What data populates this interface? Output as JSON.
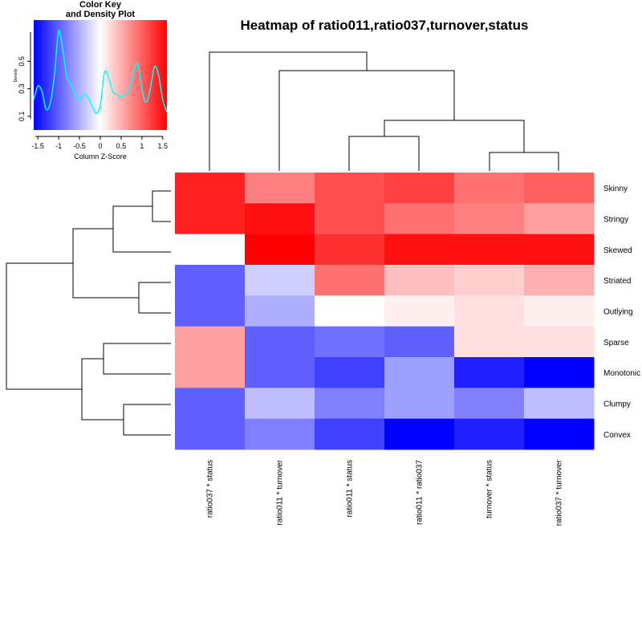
{
  "chart_data": {
    "type": "heatmap",
    "title": "Heatmap of ratio011,ratio037,turnover,status",
    "columns": [
      "ratio037 * status",
      "ratio011 * turnover",
      "ratio011 * status",
      "ratio011 * ratio037",
      "turnover * status",
      "ratio037 * turnover"
    ],
    "rows": [
      "Skinny",
      "Stringy",
      "Skewed",
      "Striated",
      "Outlying",
      "Sparse",
      "Monotonic",
      "Clumpy",
      "Convex"
    ],
    "zscores": [
      [
        1.4,
        0.8,
        1.1,
        1.2,
        0.9,
        1.0
      ],
      [
        1.4,
        1.5,
        1.1,
        0.9,
        0.8,
        0.6
      ],
      [
        0.0,
        1.6,
        1.3,
        1.5,
        1.5,
        1.5
      ],
      [
        -1.0,
        -0.3,
        0.9,
        0.4,
        0.3,
        0.5
      ],
      [
        -1.0,
        -0.5,
        0.0,
        0.1,
        0.2,
        0.1
      ],
      [
        0.6,
        -1.0,
        -0.9,
        -1.0,
        0.2,
        0.2
      ],
      [
        0.6,
        -1.0,
        -1.2,
        -0.6,
        -1.4,
        -1.6
      ],
      [
        -1.0,
        -0.4,
        -0.8,
        -0.6,
        -0.8,
        -0.4
      ],
      [
        -1.0,
        -0.8,
        -1.2,
        -1.6,
        -1.4,
        -1.6
      ]
    ],
    "color_scale": {
      "low": "#0000ff",
      "mid": "#ffffff",
      "high": "#ff0000",
      "min": -1.6,
      "max": 1.6
    },
    "column_dendrogram": true,
    "row_dendrogram": true,
    "color_key": {
      "title_line1": "Color Key",
      "title_line2": "and Density Plot",
      "xlabel": "Column Z-Score",
      "ylabel": "Density",
      "x_ticks": [
        "-1.5",
        "-1",
        "-0.5",
        "0",
        "0.5",
        "1",
        "1.5"
      ],
      "y_ticks": [
        "0.1",
        "0.3",
        "0.5"
      ],
      "density_color": "#00ffff",
      "density_curve": {
        "x": [
          -1.6,
          -1.5,
          -1.4,
          -1.3,
          -1.2,
          -1.1,
          -1.0,
          -0.9,
          -0.8,
          -0.7,
          -0.6,
          -0.5,
          -0.4,
          -0.3,
          -0.2,
          -0.1,
          0.0,
          0.1,
          0.2,
          0.3,
          0.4,
          0.5,
          0.6,
          0.7,
          0.8,
          0.9,
          1.0,
          1.1,
          1.2,
          1.3,
          1.4,
          1.5,
          1.6
        ],
        "y": [
          0.22,
          0.32,
          0.28,
          0.15,
          0.2,
          0.4,
          0.72,
          0.58,
          0.38,
          0.33,
          0.25,
          0.22,
          0.26,
          0.24,
          0.18,
          0.12,
          0.18,
          0.42,
          0.38,
          0.28,
          0.26,
          0.24,
          0.26,
          0.3,
          0.42,
          0.48,
          0.3,
          0.2,
          0.3,
          0.46,
          0.4,
          0.22,
          0.13
        ]
      }
    }
  }
}
